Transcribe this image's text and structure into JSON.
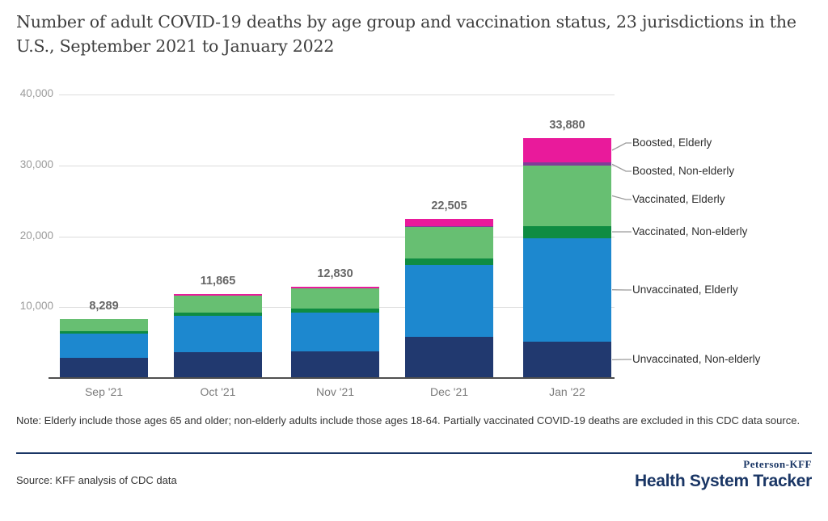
{
  "title": "Number of adult COVID-19 deaths by age group and vaccination status, 23 jurisdictions in the U.S., September 2021 to January 2022",
  "note": "Note: Elderly include those ages 65 and older; non-elderly adults include those ages 18-64. Partially vaccinated COVID-19 deaths are excluded in this CDC data source.",
  "source": "Source: KFF analysis of CDC data",
  "logo": {
    "top": "Peterson-KFF",
    "bottom": "Health System Tracker"
  },
  "colors": {
    "divider_navy": "#1a3665",
    "grid": "#dcdcdc",
    "axis_line": "#4f4f4f",
    "total_label": "#666666",
    "tick_label": "#9b9b9b"
  },
  "chart_data": {
    "type": "bar",
    "stacked": true,
    "title": "Number of adult COVID-19 deaths by age group and vaccination status, 23 jurisdictions in the U.S., September 2021 to January 2022",
    "xlabel": "",
    "ylabel": "",
    "grid": true,
    "legend_position": "right",
    "ylim": [
      0,
      40000
    ],
    "yticks": [
      10000,
      20000,
      30000,
      40000
    ],
    "ytick_labels": [
      "10,000",
      "20,000",
      "30,000",
      "40,000"
    ],
    "categories": [
      "Sep '21",
      "Oct '21",
      "Nov '21",
      "Dec '21",
      "Jan '22"
    ],
    "totals": [
      8289,
      11865,
      12830,
      22505,
      33880
    ],
    "total_labels": [
      "8,289",
      "11,865",
      "12,830",
      "22,505",
      "33,880"
    ],
    "series": [
      {
        "name": "Unvaccinated, Non-elderly",
        "color": "#21396f",
        "values": [
          2860,
          3660,
          3770,
          5830,
          5140
        ]
      },
      {
        "name": "Unvaccinated, Elderly",
        "color": "#1d88cf",
        "values": [
          3430,
          5145,
          5490,
          10170,
          14630
        ]
      },
      {
        "name": "Vaccinated, Non-elderly",
        "color": "#0f8c42",
        "values": [
          290,
          460,
          570,
          910,
          1710
        ]
      },
      {
        "name": "Vaccinated, Elderly",
        "color": "#67bf72",
        "values": [
          1709,
          2370,
          2860,
          4440,
          8460
        ]
      },
      {
        "name": "Boosted, Non-elderly",
        "color": "#803d98",
        "values": [
          0,
          0,
          0,
          115,
          460
        ]
      },
      {
        "name": "Boosted, Elderly",
        "color": "#e91a9b",
        "values": [
          0,
          230,
          140,
          1040,
          3480
        ]
      }
    ],
    "legend": [
      {
        "label": "Boosted, Elderly",
        "series": 5
      },
      {
        "label": "Boosted, Non-elderly",
        "series": 4
      },
      {
        "label": "Vaccinated, Elderly",
        "series": 3
      },
      {
        "label": "Vaccinated, Non-elderly",
        "series": 2
      },
      {
        "label": "Unvaccinated, Elderly",
        "series": 1
      },
      {
        "label": "Unvaccinated, Non-elderly",
        "series": 0
      }
    ]
  }
}
